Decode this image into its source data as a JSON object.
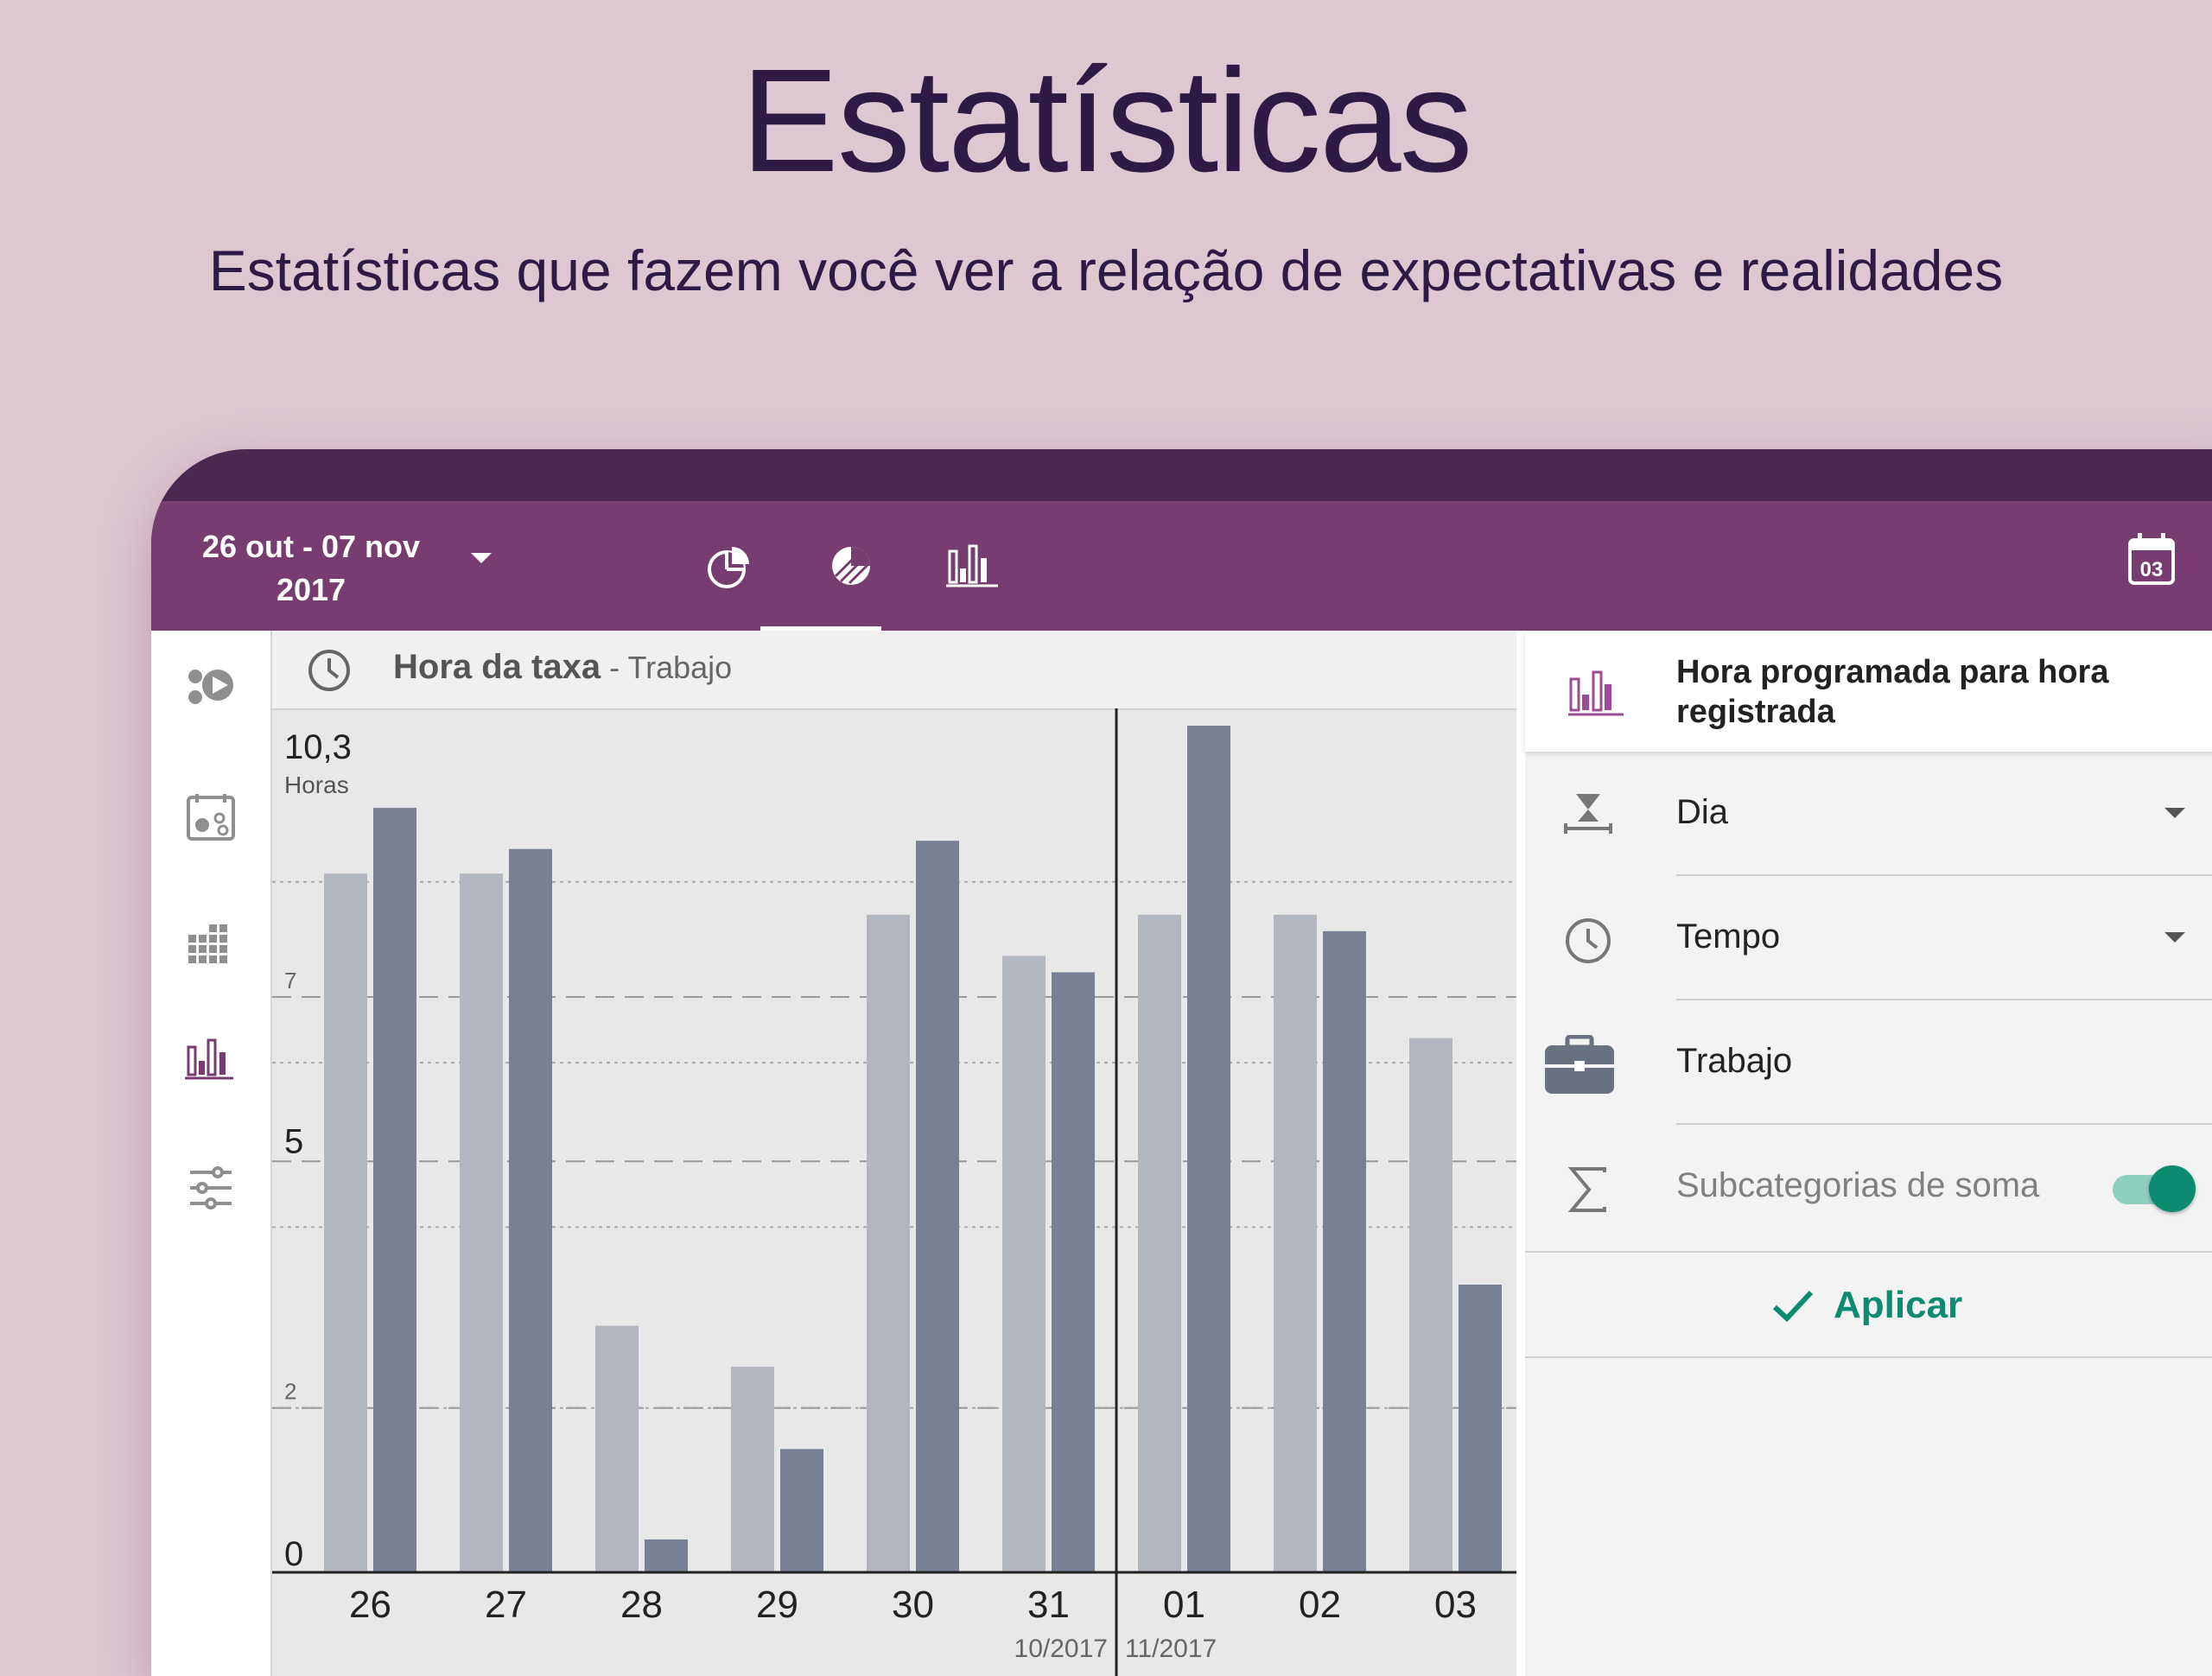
{
  "promo": {
    "title": "Estatísticas",
    "subtitle": "Estatísticas que fazem você ver a relação de expectativas e realidades"
  },
  "appbar": {
    "date_range_line1": "26 out - 07 nov",
    "date_range_line2": "2017",
    "tabs": [
      "pie-chart-icon",
      "pie-chart-striped-icon",
      "bar-chart-icon"
    ],
    "selected_tab": "bar-chart-icon",
    "calendar_day": "03"
  },
  "side_rail": {
    "items": [
      "categories-icon",
      "categories-grid-icon",
      "calendar-grid-icon",
      "bar-chart-icon",
      "filter-sliders-icon"
    ],
    "active": "bar-chart-icon"
  },
  "chart_header": {
    "metric": "Hora da taxa",
    "separator": " - ",
    "category": "Trabajo"
  },
  "chart_data": {
    "type": "bar",
    "ylabel": "Horas",
    "ymax_label": "10,3",
    "ylim": [
      0,
      10.3
    ],
    "y_ticks": [
      {
        "value": 0,
        "label": "0",
        "major": true
      },
      {
        "value": 2,
        "label": "2",
        "major": false
      },
      {
        "value": 5,
        "label": "5",
        "major": true
      },
      {
        "value": 7,
        "label": "7",
        "major": false
      }
    ],
    "minor_dotted_lines": [
      2.0,
      4.2,
      6.2,
      8.4
    ],
    "categories": [
      "26",
      "27",
      "28",
      "29",
      "30",
      "31",
      "01",
      "02",
      "03"
    ],
    "month_labels": [
      {
        "text": "10/2017",
        "after_index": 5
      },
      {
        "text": "11/2017",
        "after_index": 5
      }
    ],
    "series": [
      {
        "color": "#b2b6bf",
        "values": [
          8.5,
          8.5,
          3.0,
          2.5,
          8.0,
          7.5,
          8.0,
          8.0,
          6.5
        ]
      },
      {
        "color": "#788194",
        "values": [
          9.3,
          8.8,
          0.4,
          1.5,
          8.9,
          7.3,
          10.3,
          7.8,
          3.5
        ]
      }
    ]
  },
  "settings_panel": {
    "title": "Hora programada para hora registrada",
    "grouping": "Dia",
    "value_type": "Tempo",
    "category": "Trabajo",
    "sum_subcategories_label": "Subcategorias de soma",
    "sum_subcategories_on": true,
    "apply_label": "Aplicar"
  },
  "colors": {
    "background": "#dfc7d2",
    "appbar": "#773d70",
    "device_top": "#4a2850",
    "headline": "#2e1a45",
    "accent_green": "#0d8b70"
  }
}
